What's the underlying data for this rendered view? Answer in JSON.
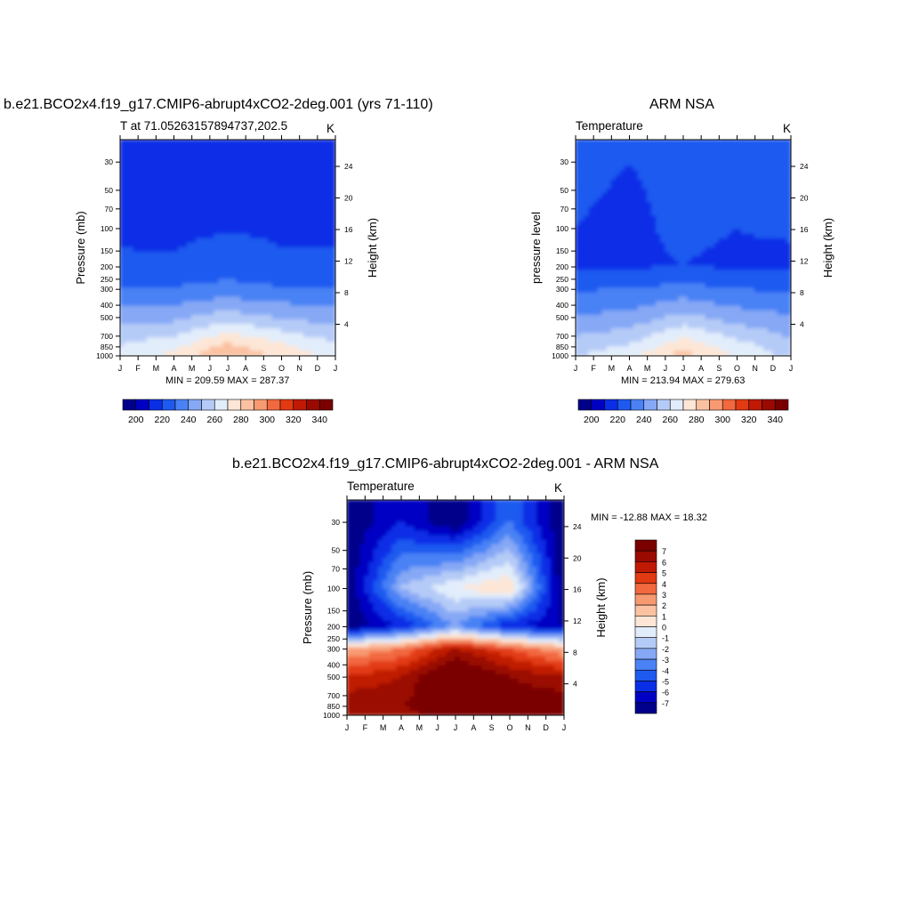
{
  "palette": [
    "#00008b",
    "#0000c4",
    "#0a2ee6",
    "#1f5af0",
    "#4a82f5",
    "#86a8f5",
    "#b5cbf7",
    "#e2edfb",
    "#fde6d6",
    "#fbc2a2",
    "#f79a72",
    "#f2683f",
    "#e23a12",
    "#c01a05",
    "#9a0a00",
    "#7a0000"
  ],
  "months": [
    "J",
    "F",
    "M",
    "A",
    "M",
    "J",
    "J",
    "A",
    "S",
    "O",
    "N",
    "D",
    "J"
  ],
  "pressure_ticks": [
    "30",
    "50",
    "70",
    "100",
    "150",
    "200",
    "250",
    "300",
    "400",
    "500",
    "700",
    "850",
    "1000"
  ],
  "panel1": {
    "title": "b.e21.BCO2x4.f19_g17.CMIP6-abrupt4xCO2-2deg.001 (yrs 71-110)",
    "left_label": "T at 71.05263157894737,202.5",
    "units": "K",
    "ylabel": "Pressure (mb)",
    "ylabel_right": "Height (km)",
    "minmax": "MIN = 209.59 MAX = 287.37"
  },
  "panel2": {
    "title": "ARM NSA",
    "left_label": "Temperature",
    "units": "K",
    "ylabel": "pressure level",
    "ylabel_right": "Height (km)",
    "minmax": "MIN = 213.94 MAX = 279.63"
  },
  "panel3": {
    "title": "b.e21.BCO2x4.f19_g17.CMIP6-abrupt4xCO2-2deg.001 - ARM NSA",
    "left_label": "Temperature",
    "units": "K",
    "ylabel": "Pressure (mb)",
    "ylabel_right": "Height (km)",
    "minmax": "MIN = -12.88 MAX =  18.32"
  },
  "chart_data": [
    {
      "type": "heatmap",
      "title": "b.e21.BCO2x4.f19_g17.CMIP6-abrupt4xCO2-2deg.001 (yrs 71-110)",
      "xlabel": "",
      "ylabel": "Pressure (mb)",
      "ylabel_right": "Height (km)",
      "x": [
        "J",
        "F",
        "M",
        "A",
        "M",
        "J",
        "J",
        "A",
        "S",
        "O",
        "N",
        "D",
        "J"
      ],
      "y_pressure_ticks": [
        30,
        50,
        70,
        100,
        150,
        200,
        250,
        300,
        400,
        500,
        700,
        850,
        1000
      ],
      "y_height_ticks": [
        4,
        8,
        12,
        16,
        20,
        24
      ],
      "colorbar_ticks": [
        200,
        220,
        240,
        260,
        280,
        300,
        320,
        340
      ],
      "min": 209.59,
      "max": 287.37,
      "fields": {
        "level_pressures": [
          30,
          100,
          200,
          300,
          500,
          850,
          1000
        ],
        "month_index": [
          0,
          3,
          6,
          9,
          12
        ]
      },
      "grid": [
        [
          215,
          214,
          213,
          214,
          215
        ],
        [
          214,
          213,
          214,
          214,
          214
        ],
        [
          216,
          216,
          221,
          216,
          216
        ],
        [
          225,
          226,
          228,
          226,
          225
        ],
        [
          240,
          242,
          250,
          244,
          240
        ],
        [
          256,
          262,
          278,
          268,
          257
        ],
        [
          260,
          268,
          286,
          272,
          262
        ]
      ]
    },
    {
      "type": "heatmap",
      "title": "ARM NSA",
      "xlabel": "",
      "ylabel": "pressure level",
      "ylabel_right": "Height (km)",
      "x": [
        "J",
        "F",
        "M",
        "A",
        "M",
        "J",
        "J",
        "A",
        "S",
        "O",
        "N",
        "D",
        "J"
      ],
      "y_pressure_ticks": [
        30,
        50,
        70,
        100,
        150,
        200,
        250,
        300,
        400,
        500,
        700,
        850,
        1000
      ],
      "y_height_ticks": [
        4,
        8,
        12,
        16,
        20,
        24
      ],
      "colorbar_ticks": [
        200,
        220,
        240,
        260,
        280,
        300,
        320,
        340
      ],
      "min": 213.94,
      "max": 279.63,
      "fields": {
        "level_pressures": [
          30,
          100,
          200,
          300,
          500,
          850,
          1000
        ],
        "month_index": [
          0,
          3,
          6,
          9,
          12
        ]
      },
      "grid": [
        [
          216,
          215,
          216,
          216,
          218
        ],
        [
          215,
          214,
          216,
          215,
          216
        ],
        [
          213,
          214,
          215,
          214,
          213
        ],
        [
          224,
          225,
          228,
          225,
          223
        ],
        [
          236,
          238,
          248,
          240,
          236
        ],
        [
          250,
          256,
          272,
          260,
          248
        ],
        [
          254,
          262,
          279,
          264,
          252
        ]
      ]
    },
    {
      "type": "heatmap",
      "title": "b.e21.BCO2x4.f19_g17.CMIP6-abrupt4xCO2-2deg.001 - ARM NSA",
      "xlabel": "",
      "ylabel": "Pressure (mb)",
      "ylabel_right": "Height (km)",
      "x": [
        "J",
        "F",
        "M",
        "A",
        "M",
        "J",
        "J",
        "A",
        "S",
        "O",
        "N",
        "D",
        "J"
      ],
      "y_pressure_ticks": [
        30,
        50,
        70,
        100,
        150,
        200,
        250,
        300,
        400,
        500,
        700,
        850,
        1000
      ],
      "y_height_ticks": [
        4,
        8,
        12,
        16,
        20,
        24
      ],
      "colorbar_ticks": [
        7,
        6,
        5,
        4,
        3,
        2,
        1,
        0,
        -1,
        -2,
        -3,
        -4,
        -5,
        -6,
        -7
      ],
      "min": -12.88,
      "max": 18.32,
      "fields": {
        "level_pressures": [
          30,
          100,
          200,
          300,
          500,
          850,
          1000
        ],
        "month_index": [
          0,
          3,
          6,
          9,
          12
        ]
      },
      "grid": [
        [
          -8,
          -6,
          -8,
          -4,
          -8
        ],
        [
          -8,
          -2,
          0,
          1,
          -8
        ],
        [
          -8,
          -6,
          -3,
          -6,
          -7
        ],
        [
          2,
          3,
          6,
          4,
          2
        ],
        [
          5,
          6,
          9,
          7,
          6
        ],
        [
          7,
          7,
          8,
          8,
          8
        ],
        [
          7,
          6,
          9,
          8,
          7
        ]
      ]
    }
  ]
}
